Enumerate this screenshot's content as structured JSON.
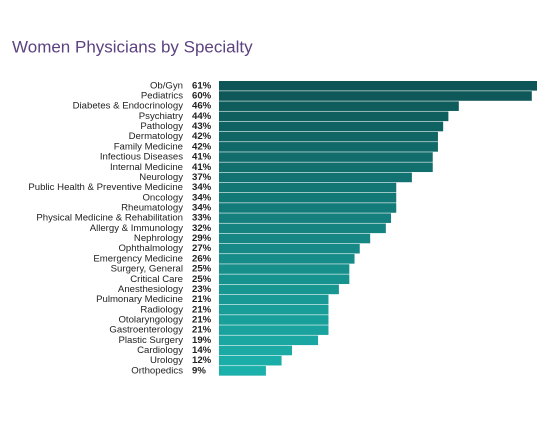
{
  "chart_data": {
    "type": "hbar",
    "title": "Women Physicians by Specialty",
    "categories": [
      "Ob/Gyn",
      "Pediatrics",
      "Diabetes & Endocrinology",
      "Psychiatry",
      "Pathology",
      "Dermatology",
      "Family Medicine",
      "Infectious Diseases",
      "Internal Medicine",
      "Neurology",
      "Public Health & Preventive Medicine",
      "Oncology",
      "Rheumatology",
      "Physical Medicine & Rehabilitation",
      "Allergy & Immunology",
      "Nephrology",
      "Ophthalmology",
      "Emergency Medicine",
      "Surgery, General",
      "Critical Care",
      "Anesthesiology",
      "Pulmonary Medicine",
      "Radiology",
      "Otolaryngology",
      "Gastroenterology",
      "Plastic Surgery",
      "Cardiology",
      "Urology",
      "Orthopedics"
    ],
    "values": [
      61,
      60,
      46,
      44,
      43,
      42,
      42,
      41,
      41,
      37,
      34,
      34,
      34,
      33,
      32,
      29,
      27,
      26,
      25,
      25,
      23,
      21,
      21,
      21,
      21,
      19,
      14,
      12,
      9
    ],
    "value_labels": [
      "61%",
      "60%",
      "46%",
      "44%",
      "43%",
      "42%",
      "42%",
      "41%",
      "41%",
      "37%",
      "34%",
      "34%",
      "34%",
      "33%",
      "32%",
      "29%",
      "27%",
      "26%",
      "25%",
      "25%",
      "23%",
      "21%",
      "21%",
      "21%",
      "21%",
      "19%",
      "14%",
      "12%",
      "9%"
    ],
    "colors": [
      "#0d5556",
      "#1cb0aa"
    ]
  }
}
